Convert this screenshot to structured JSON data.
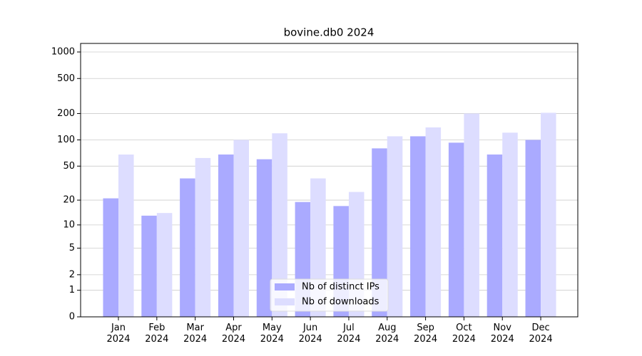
{
  "chart_data": {
    "type": "bar",
    "title": "bovine.db0 2024",
    "categories": [
      "Jan\n2024",
      "Feb\n2024",
      "Mar\n2024",
      "Apr\n2024",
      "May\n2024",
      "Jun\n2024",
      "Jul\n2024",
      "Aug\n2024",
      "Sep\n2024",
      "Oct\n2024",
      "Nov\n2024",
      "Dec\n2024"
    ],
    "series": [
      {
        "name": "Nb of distinct IPs",
        "color": "#aaaaff",
        "values": [
          21,
          13,
          36,
          68,
          60,
          19,
          17,
          80,
          110,
          93,
          68,
          100
        ]
      },
      {
        "name": "Nb of downloads",
        "color": "#ddddff",
        "values": [
          68,
          14,
          62,
          100,
          119,
          36,
          25,
          110,
          139,
          200,
          121,
          204
        ]
      }
    ],
    "yscale": "log1p",
    "ylim": [
      0,
      1250
    ],
    "yticks": [
      0,
      1,
      2,
      5,
      10,
      20,
      50,
      100,
      200,
      500,
      1000
    ],
    "grid": true,
    "legend": "lower center"
  }
}
